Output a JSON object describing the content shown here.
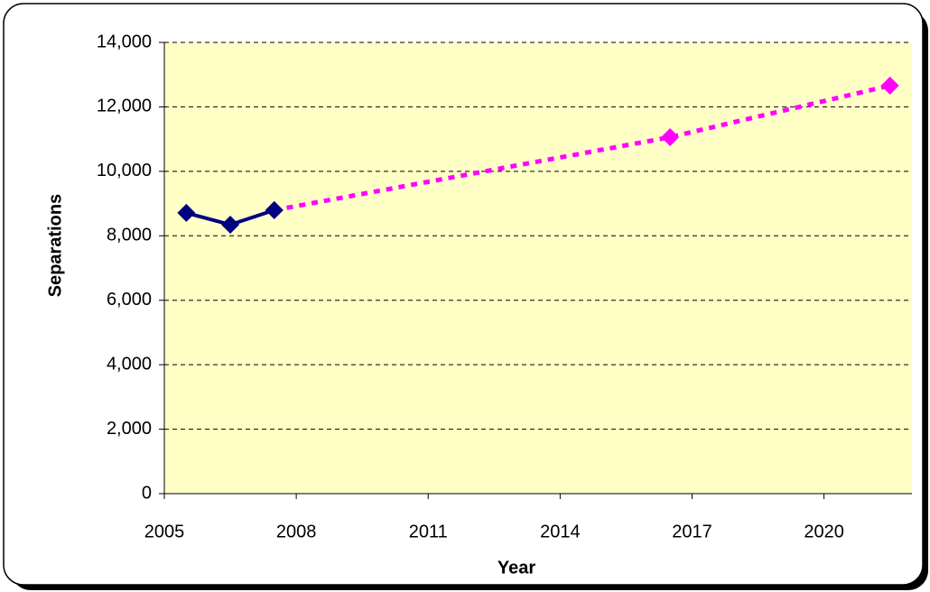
{
  "chart_data": {
    "type": "line",
    "x_label": "Year",
    "y_label": "Separations",
    "series": [
      {
        "color": "#ff00ff",
        "dashed": true,
        "x": [
          2007.5,
          2016.5,
          2021.5
        ],
        "values": [
          8795,
          11060,
          12660
        ]
      },
      {
        "color": "#000080",
        "dashed": false,
        "x": [
          2005.5,
          2006.5,
          2007.5
        ],
        "values": [
          8710,
          8345,
          8795
        ]
      }
    ],
    "xlim": [
      2005,
      2022
    ],
    "xticks": [
      2005,
      2008,
      2011,
      2014,
      2017,
      2020
    ],
    "ylim": [
      0,
      14000
    ],
    "yticks": [
      0,
      {
        "value": 2000,
        "label": "2,000"
      },
      {
        "value": 4000,
        "label": "4,000"
      },
      {
        "value": 6000,
        "label": "6,000"
      },
      {
        "value": 8000,
        "label": "8,000"
      },
      {
        "value": 10000,
        "label": "10,000"
      },
      {
        "value": 12000,
        "label": "12,000"
      },
      {
        "value": 14000,
        "label": "14,000"
      }
    ],
    "grid": true,
    "plot_background": "#ffffc6"
  }
}
